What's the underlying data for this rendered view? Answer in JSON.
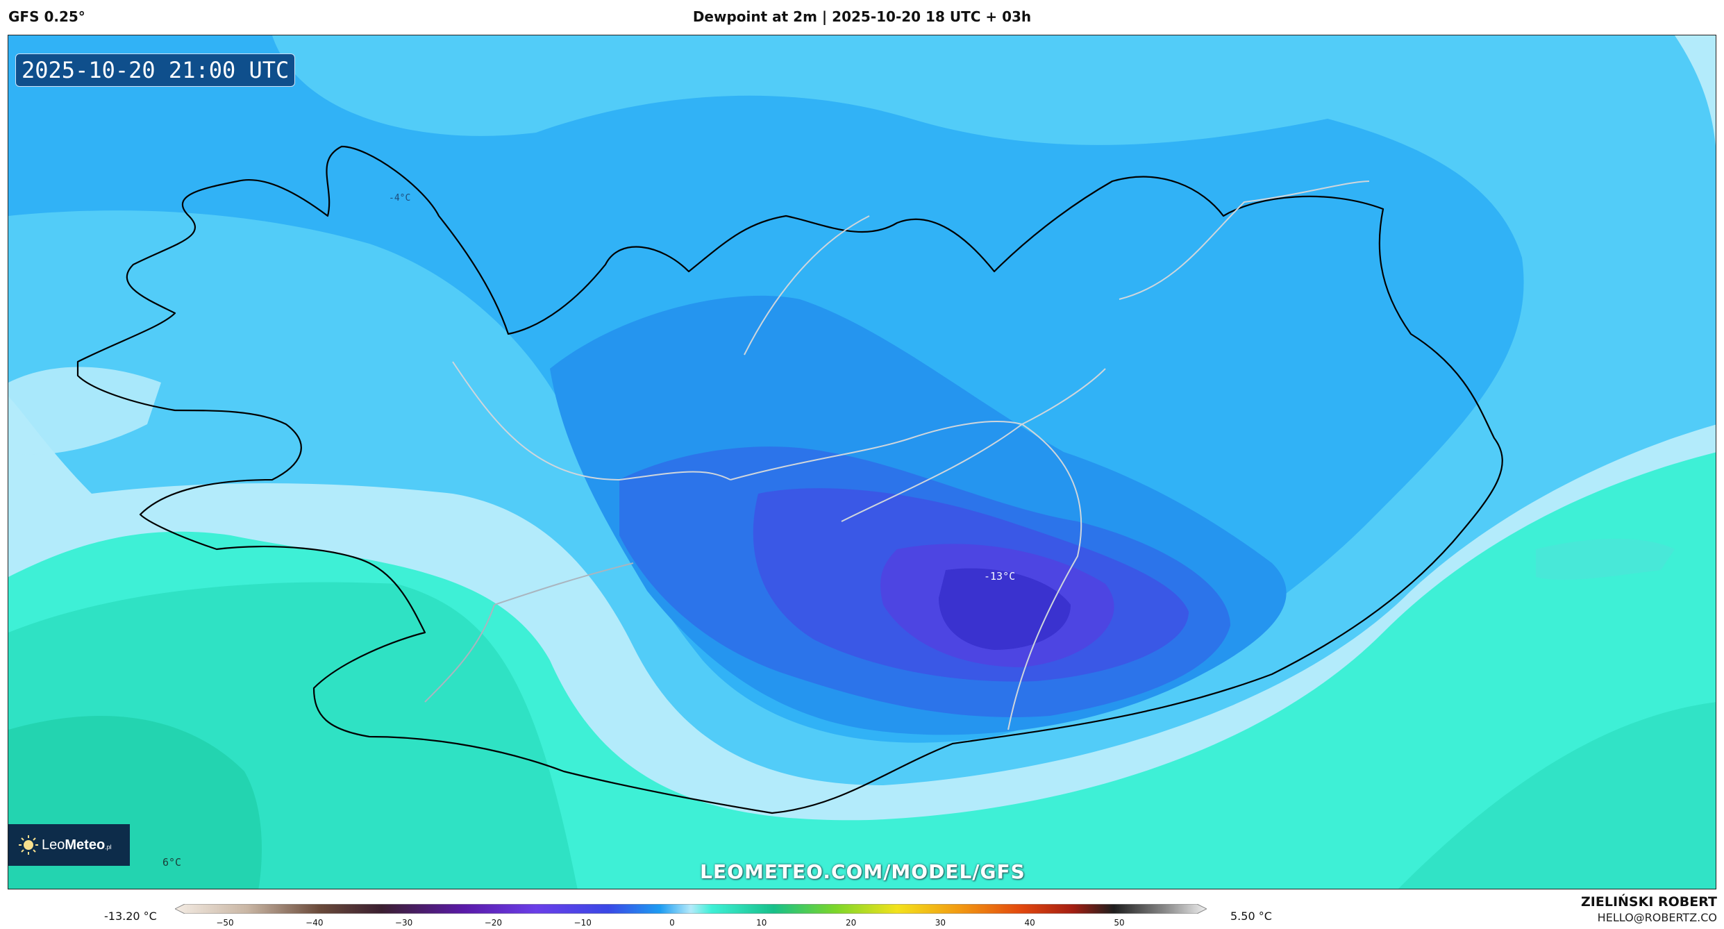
{
  "header": {
    "model_label": "GFS 0.25°",
    "title": "Dewpoint at 2m | 2025-10-20 18 UTC + 03h"
  },
  "map": {
    "valid_time": "2025-10-20 21:00 UTC",
    "min_value_label": "-13°C",
    "max_value_label": "6°C",
    "small_value_label": "-4°C",
    "watermark": "LEOMETEO.COM/MODEL/GFS",
    "logo": {
      "text_light": "Leo",
      "text_bold": "Meteo",
      "suffix": ".pl"
    },
    "colors": {
      "very_cold": "#3a3ee0",
      "cold": "#1f8cf0",
      "cool": "#33c3f7",
      "mild": "#b3ebfb",
      "warm": "#3ef0d6"
    }
  },
  "scale": {
    "min_label": "-13.20 °C",
    "max_label": "5.50 °C",
    "ticks": [
      "−50",
      "−40",
      "−30",
      "−20",
      "−10",
      "0",
      "10",
      "20",
      "30",
      "40",
      "50"
    ]
  },
  "author": {
    "name": "ZIELIŃSKI ROBERT",
    "email": "HELLO@ROBERTZ.CO"
  }
}
